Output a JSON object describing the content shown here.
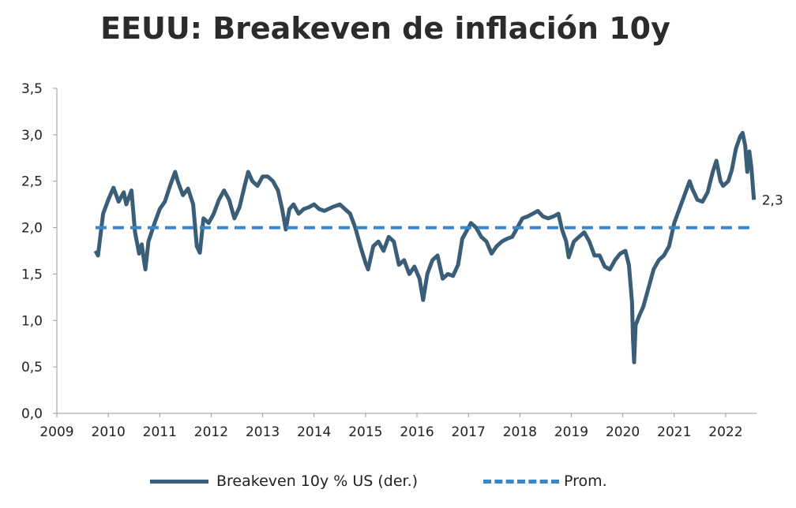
{
  "chart_data": {
    "type": "line",
    "title": "EEUU: Breakeven de inflación 10y",
    "xlabel": "",
    "ylabel": "",
    "xlim": [
      2009,
      2022.6
    ],
    "ylim": [
      0,
      3.5
    ],
    "x_ticks": [
      "2009",
      "2010",
      "2011",
      "2012",
      "2013",
      "2014",
      "2015",
      "2016",
      "2017",
      "2018",
      "2019",
      "2020",
      "2021",
      "2022"
    ],
    "y_ticks": [
      "0,0",
      "0,5",
      "1,0",
      "1,5",
      "2,0",
      "2,5",
      "3,0",
      "3,5"
    ],
    "grid": false,
    "legend_position": "bottom",
    "end_label": "2,3",
    "series": [
      {
        "name": "Breakeven 10y % US (der.)",
        "style": "solid",
        "color": "#3b5e78",
        "points": [
          [
            2009.75,
            1.75
          ],
          [
            2009.8,
            1.7
          ],
          [
            2009.9,
            2.15
          ],
          [
            2010.0,
            2.3
          ],
          [
            2010.1,
            2.43
          ],
          [
            2010.2,
            2.28
          ],
          [
            2010.3,
            2.38
          ],
          [
            2010.35,
            2.25
          ],
          [
            2010.45,
            2.4
          ],
          [
            2010.52,
            1.95
          ],
          [
            2010.6,
            1.72
          ],
          [
            2010.65,
            1.82
          ],
          [
            2010.7,
            1.62
          ],
          [
            2010.72,
            1.55
          ],
          [
            2010.78,
            1.85
          ],
          [
            2010.9,
            2.05
          ],
          [
            2011.0,
            2.2
          ],
          [
            2011.1,
            2.28
          ],
          [
            2011.2,
            2.45
          ],
          [
            2011.3,
            2.6
          ],
          [
            2011.35,
            2.5
          ],
          [
            2011.45,
            2.35
          ],
          [
            2011.55,
            2.42
          ],
          [
            2011.65,
            2.25
          ],
          [
            2011.72,
            1.8
          ],
          [
            2011.78,
            1.73
          ],
          [
            2011.85,
            2.1
          ],
          [
            2011.95,
            2.05
          ],
          [
            2012.05,
            2.15
          ],
          [
            2012.15,
            2.3
          ],
          [
            2012.25,
            2.4
          ],
          [
            2012.35,
            2.3
          ],
          [
            2012.45,
            2.1
          ],
          [
            2012.55,
            2.22
          ],
          [
            2012.65,
            2.45
          ],
          [
            2012.72,
            2.6
          ],
          [
            2012.8,
            2.5
          ],
          [
            2012.9,
            2.45
          ],
          [
            2013.0,
            2.55
          ],
          [
            2013.1,
            2.55
          ],
          [
            2013.2,
            2.5
          ],
          [
            2013.3,
            2.4
          ],
          [
            2013.38,
            2.2
          ],
          [
            2013.45,
            1.98
          ],
          [
            2013.52,
            2.2
          ],
          [
            2013.6,
            2.25
          ],
          [
            2013.7,
            2.15
          ],
          [
            2013.8,
            2.2
          ],
          [
            2013.9,
            2.22
          ],
          [
            2014.0,
            2.25
          ],
          [
            2014.1,
            2.2
          ],
          [
            2014.2,
            2.18
          ],
          [
            2014.35,
            2.22
          ],
          [
            2014.5,
            2.25
          ],
          [
            2014.6,
            2.2
          ],
          [
            2014.7,
            2.15
          ],
          [
            2014.8,
            2.0
          ],
          [
            2014.9,
            1.8
          ],
          [
            2015.0,
            1.62
          ],
          [
            2015.05,
            1.55
          ],
          [
            2015.15,
            1.8
          ],
          [
            2015.25,
            1.85
          ],
          [
            2015.35,
            1.75
          ],
          [
            2015.45,
            1.9
          ],
          [
            2015.55,
            1.85
          ],
          [
            2015.65,
            1.6
          ],
          [
            2015.75,
            1.65
          ],
          [
            2015.85,
            1.5
          ],
          [
            2015.95,
            1.58
          ],
          [
            2016.05,
            1.45
          ],
          [
            2016.12,
            1.22
          ],
          [
            2016.2,
            1.5
          ],
          [
            2016.3,
            1.65
          ],
          [
            2016.4,
            1.7
          ],
          [
            2016.5,
            1.45
          ],
          [
            2016.6,
            1.5
          ],
          [
            2016.7,
            1.48
          ],
          [
            2016.8,
            1.6
          ],
          [
            2016.88,
            1.88
          ],
          [
            2016.95,
            1.95
          ],
          [
            2017.05,
            2.05
          ],
          [
            2017.15,
            2.0
          ],
          [
            2017.25,
            1.9
          ],
          [
            2017.35,
            1.85
          ],
          [
            2017.45,
            1.72
          ],
          [
            2017.55,
            1.8
          ],
          [
            2017.65,
            1.85
          ],
          [
            2017.75,
            1.88
          ],
          [
            2017.85,
            1.9
          ],
          [
            2017.95,
            2.0
          ],
          [
            2018.05,
            2.1
          ],
          [
            2018.15,
            2.12
          ],
          [
            2018.25,
            2.15
          ],
          [
            2018.35,
            2.18
          ],
          [
            2018.45,
            2.12
          ],
          [
            2018.55,
            2.1
          ],
          [
            2018.65,
            2.12
          ],
          [
            2018.75,
            2.15
          ],
          [
            2018.82,
            1.98
          ],
          [
            2018.9,
            1.85
          ],
          [
            2018.95,
            1.68
          ],
          [
            2019.05,
            1.85
          ],
          [
            2019.15,
            1.9
          ],
          [
            2019.25,
            1.95
          ],
          [
            2019.35,
            1.85
          ],
          [
            2019.45,
            1.7
          ],
          [
            2019.55,
            1.7
          ],
          [
            2019.65,
            1.58
          ],
          [
            2019.75,
            1.55
          ],
          [
            2019.85,
            1.65
          ],
          [
            2019.95,
            1.72
          ],
          [
            2020.05,
            1.75
          ],
          [
            2020.12,
            1.6
          ],
          [
            2020.18,
            1.2
          ],
          [
            2020.2,
            0.8
          ],
          [
            2020.22,
            0.55
          ],
          [
            2020.25,
            0.95
          ],
          [
            2020.32,
            1.05
          ],
          [
            2020.4,
            1.15
          ],
          [
            2020.5,
            1.35
          ],
          [
            2020.6,
            1.55
          ],
          [
            2020.7,
            1.65
          ],
          [
            2020.8,
            1.7
          ],
          [
            2020.9,
            1.8
          ],
          [
            2021.0,
            2.05
          ],
          [
            2021.1,
            2.2
          ],
          [
            2021.2,
            2.35
          ],
          [
            2021.3,
            2.5
          ],
          [
            2021.35,
            2.42
          ],
          [
            2021.45,
            2.3
          ],
          [
            2021.55,
            2.28
          ],
          [
            2021.65,
            2.38
          ],
          [
            2021.75,
            2.6
          ],
          [
            2021.82,
            2.72
          ],
          [
            2021.9,
            2.5
          ],
          [
            2021.95,
            2.45
          ],
          [
            2022.05,
            2.5
          ],
          [
            2022.12,
            2.62
          ],
          [
            2022.2,
            2.85
          ],
          [
            2022.28,
            2.98
          ],
          [
            2022.33,
            3.02
          ],
          [
            2022.38,
            2.88
          ],
          [
            2022.42,
            2.6
          ],
          [
            2022.46,
            2.82
          ],
          [
            2022.5,
            2.65
          ],
          [
            2022.55,
            2.3
          ]
        ]
      },
      {
        "name": "Prom.",
        "style": "dashed",
        "color": "#3a86c8",
        "points": [
          [
            2009.75,
            2.0
          ],
          [
            2022.55,
            2.0
          ]
        ]
      }
    ]
  }
}
